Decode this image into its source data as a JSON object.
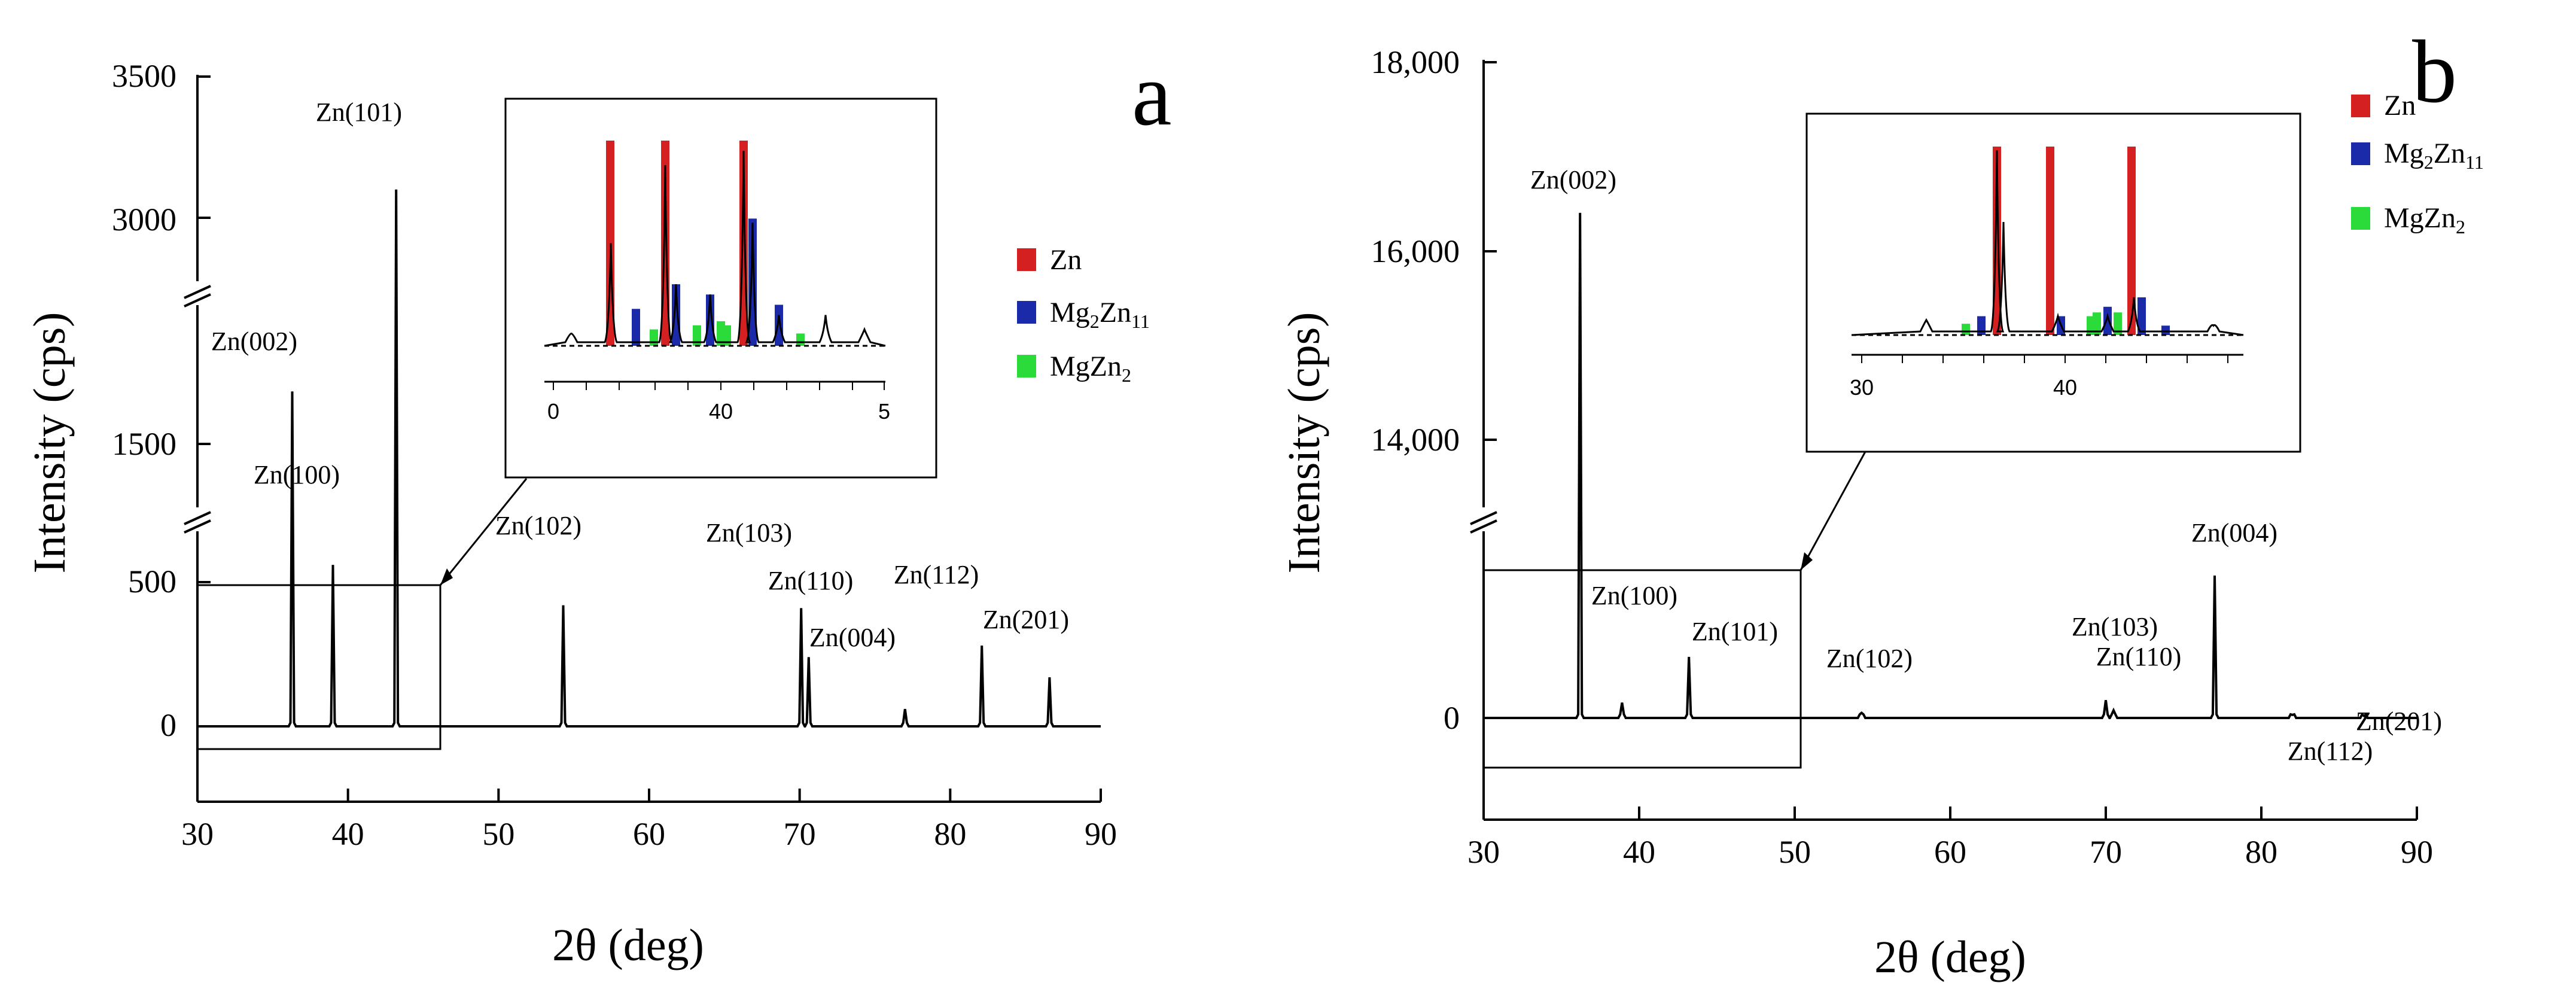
{
  "figure": {
    "panels": [
      {
        "letter": "a",
        "xlabel": "2θ (deg)",
        "ylabel": "Intensity (cps)"
      },
      {
        "letter": "b",
        "xlabel": "2θ (deg)",
        "ylabel": "Intensity (cps)"
      }
    ]
  },
  "legend": [
    {
      "name": "Zn",
      "base": "Zn",
      "color": "#d42020"
    },
    {
      "name": "Mg2Zn11",
      "parts": [
        "Mg",
        "2",
        "Zn",
        "11"
      ],
      "color": "#1a2aa8"
    },
    {
      "name": "MgZn2",
      "parts": [
        "MgZn",
        "2"
      ],
      "color": "#2adb3a"
    }
  ],
  "chart_data": [
    {
      "type": "line",
      "panel": "a",
      "title": "",
      "xlabel": "2θ (deg)",
      "ylabel": "Intensity (cps)",
      "xlim": [
        30,
        90
      ],
      "x_ticks": [
        "30",
        "40",
        "50",
        "60",
        "70",
        "80",
        "90"
      ],
      "y_ticks": [
        "0",
        "500",
        "1500",
        "3000",
        "3500"
      ],
      "y_axis_break": true,
      "peaks": [
        {
          "x": 36.3,
          "y": 1880,
          "label": "Zn(002)"
        },
        {
          "x": 39.0,
          "y": 560,
          "label": "Zn(100)"
        },
        {
          "x": 43.2,
          "y": 3100,
          "label": "Zn(101)"
        },
        {
          "x": 54.3,
          "y": 420,
          "label": "Zn(102)"
        },
        {
          "x": 70.1,
          "y": 410,
          "label": "Zn(103)"
        },
        {
          "x": 70.6,
          "y": 240,
          "label": "Zn(110)"
        },
        {
          "x": 77.0,
          "y": 60,
          "label": "Zn(004)"
        },
        {
          "x": 82.1,
          "y": 280,
          "label": "Zn(112)"
        },
        {
          "x": 86.6,
          "y": 170,
          "label": "Zn(201)"
        }
      ],
      "inset": {
        "x_ticks": [
          "0",
          "40",
          "5"
        ],
        "zoom_range_deg": [
          30,
          46
        ]
      }
    },
    {
      "type": "line",
      "panel": "b",
      "title": "",
      "xlabel": "2θ (deg)",
      "ylabel": "Intensity (cps)",
      "xlim": [
        30,
        90
      ],
      "x_ticks": [
        "30",
        "40",
        "50",
        "60",
        "70",
        "80",
        "90"
      ],
      "y_ticks": [
        "0",
        "14,000",
        "16,000",
        "18,000"
      ],
      "y_axis_break": true,
      "peaks": [
        {
          "x": 36.2,
          "y": 16400,
          "label": "Zn(002)"
        },
        {
          "x": 38.9,
          "y": 300,
          "label": "Zn(100)"
        },
        {
          "x": 43.2,
          "y": 1200,
          "label": "Zn(101)"
        },
        {
          "x": 54.3,
          "y": 100,
          "label": "Zn(102)"
        },
        {
          "x": 70.0,
          "y": 350,
          "label": "Zn(103)"
        },
        {
          "x": 70.5,
          "y": 150,
          "label": "Zn(110)"
        },
        {
          "x": 77.0,
          "y": 2800,
          "label": "Zn(004)"
        },
        {
          "x": 82.0,
          "y": 60,
          "label": "Zn(112)"
        },
        {
          "x": 86.6,
          "y": 40,
          "label": "Zn(201)"
        }
      ],
      "inset": {
        "x_ticks": [
          "30",
          "40"
        ],
        "zoom_range_deg": [
          30,
          50
        ]
      }
    }
  ]
}
